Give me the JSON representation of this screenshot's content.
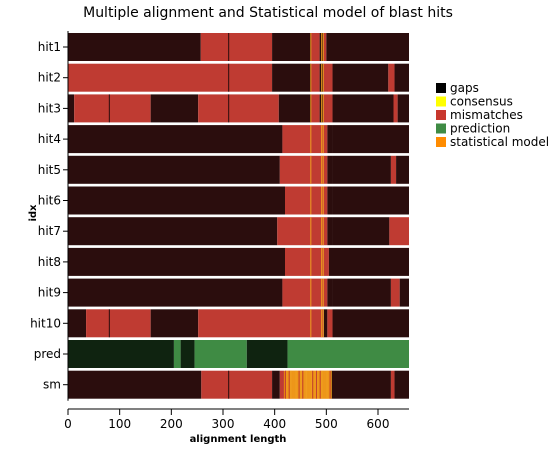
{
  "chart_data": {
    "type": "heatmap",
    "title": "Multiple alignment and Statistical model of blast hits",
    "xlabel": "alignment length",
    "ylabel": "idx",
    "xlim": [
      0,
      660
    ],
    "xticks": [
      0,
      100,
      200,
      300,
      400,
      500,
      600
    ],
    "rows": [
      "hit1",
      "hit2",
      "hit3",
      "hit4",
      "hit5",
      "hit6",
      "hit7",
      "hit8",
      "hit9",
      "hit10",
      "pred",
      "sm"
    ],
    "legend": {
      "position": "right",
      "items": [
        {
          "label": "gaps",
          "color": "#000000"
        },
        {
          "label": "consensus",
          "color": "#ffff00"
        },
        {
          "label": "mismatches",
          "color": "#c8372d"
        },
        {
          "label": "prediction",
          "color": "#3f8b44"
        },
        {
          "label": "statistical model",
          "color": "#ff8c00"
        }
      ]
    },
    "colors": {
      "gap": "#2b0d0d",
      "mismatch": "#bf3b32",
      "pred_dark": "#0f2310",
      "pred_green": "#3f8b44",
      "sm_orange": "#e8820e",
      "sm_line": "#f0a020"
    },
    "segments": {
      "hit1": [
        [
          0,
          257,
          "gap"
        ],
        [
          257,
          395,
          "mismatch"
        ],
        [
          395,
          470,
          "gap"
        ],
        [
          470,
          487,
          "mismatch"
        ],
        [
          487,
          494,
          "gap"
        ],
        [
          494,
          500,
          "mismatch"
        ],
        [
          500,
          660,
          "gap"
        ]
      ],
      "hit2": [
        [
          0,
          395,
          "mismatch"
        ],
        [
          395,
          470,
          "gap"
        ],
        [
          470,
          487,
          "mismatch"
        ],
        [
          487,
          494,
          "gap"
        ],
        [
          494,
          512,
          "mismatch"
        ],
        [
          512,
          620,
          "gap"
        ],
        [
          620,
          632,
          "mismatch"
        ],
        [
          632,
          660,
          "gap"
        ]
      ],
      "hit3": [
        [
          0,
          12,
          "gap"
        ],
        [
          12,
          160,
          "mismatch"
        ],
        [
          160,
          252,
          "gap"
        ],
        [
          252,
          408,
          "mismatch"
        ],
        [
          408,
          470,
          "gap"
        ],
        [
          470,
          487,
          "mismatch"
        ],
        [
          487,
          494,
          "gap"
        ],
        [
          494,
          512,
          "mismatch"
        ],
        [
          512,
          630,
          "gap"
        ],
        [
          630,
          638,
          "mismatch"
        ],
        [
          638,
          660,
          "gap"
        ]
      ],
      "hit4": [
        [
          0,
          415,
          "gap"
        ],
        [
          415,
          502,
          "mismatch"
        ],
        [
          502,
          512,
          "gap"
        ],
        [
          512,
          660,
          "gap"
        ]
      ],
      "hit5": [
        [
          0,
          410,
          "gap"
        ],
        [
          410,
          502,
          "mismatch"
        ],
        [
          502,
          512,
          "gap"
        ],
        [
          512,
          625,
          "gap"
        ],
        [
          625,
          635,
          "mismatch"
        ],
        [
          635,
          660,
          "gap"
        ]
      ],
      "hit6": [
        [
          0,
          420,
          "gap"
        ],
        [
          420,
          502,
          "mismatch"
        ],
        [
          502,
          512,
          "gap"
        ],
        [
          512,
          660,
          "gap"
        ]
      ],
      "hit7": [
        [
          0,
          405,
          "gap"
        ],
        [
          405,
          502,
          "mismatch"
        ],
        [
          502,
          512,
          "gap"
        ],
        [
          512,
          622,
          "gap"
        ],
        [
          622,
          660,
          "mismatch"
        ]
      ],
      "hit8": [
        [
          0,
          420,
          "gap"
        ],
        [
          420,
          505,
          "mismatch"
        ],
        [
          505,
          660,
          "gap"
        ]
      ],
      "hit9": [
        [
          0,
          415,
          "gap"
        ],
        [
          415,
          502,
          "mismatch"
        ],
        [
          502,
          512,
          "gap"
        ],
        [
          512,
          625,
          "gap"
        ],
        [
          625,
          642,
          "mismatch"
        ],
        [
          642,
          660,
          "gap"
        ]
      ],
      "hit10": [
        [
          0,
          35,
          "gap"
        ],
        [
          35,
          160,
          "mismatch"
        ],
        [
          160,
          252,
          "gap"
        ],
        [
          252,
          495,
          "mismatch"
        ],
        [
          495,
          502,
          "gap"
        ],
        [
          502,
          512,
          "mismatch"
        ],
        [
          512,
          660,
          "gap"
        ]
      ],
      "pred": [
        [
          0,
          205,
          "pred_dark"
        ],
        [
          205,
          218,
          "pred_green"
        ],
        [
          218,
          245,
          "pred_dark"
        ],
        [
          245,
          346,
          "pred_green"
        ],
        [
          346,
          425,
          "pred_dark"
        ],
        [
          425,
          660,
          "pred_green"
        ]
      ],
      "sm": [
        [
          0,
          258,
          "gap"
        ],
        [
          258,
          395,
          "mismatch"
        ],
        [
          395,
          410,
          "gap"
        ],
        [
          410,
          418,
          "mismatch"
        ],
        [
          418,
          510,
          "sm_orange"
        ],
        [
          510,
          625,
          "gap"
        ],
        [
          625,
          632,
          "mismatch"
        ],
        [
          632,
          660,
          "gap"
        ]
      ]
    },
    "thin_lines": {
      "hit1": [
        {
          "x": 311,
          "color": "gap"
        },
        {
          "x": 470,
          "color": "sm_line"
        },
        {
          "x": 491,
          "color": "sm_line"
        },
        {
          "x": 494,
          "color": "sm_line"
        }
      ],
      "hit2": [
        {
          "x": 311,
          "color": "gap"
        },
        {
          "x": 470,
          "color": "sm_line"
        },
        {
          "x": 491,
          "color": "sm_line"
        },
        {
          "x": 494,
          "color": "sm_line"
        }
      ],
      "hit3": [
        {
          "x": 80,
          "color": "gap"
        },
        {
          "x": 311,
          "color": "gap"
        },
        {
          "x": 470,
          "color": "sm_line"
        },
        {
          "x": 491,
          "color": "sm_line"
        },
        {
          "x": 494,
          "color": "sm_line"
        }
      ],
      "hit4": [
        {
          "x": 470,
          "color": "sm_line"
        },
        {
          "x": 491,
          "color": "sm_line"
        },
        {
          "x": 494,
          "color": "sm_line"
        }
      ],
      "hit5": [
        {
          "x": 470,
          "color": "sm_line"
        },
        {
          "x": 491,
          "color": "sm_line"
        },
        {
          "x": 494,
          "color": "sm_line"
        }
      ],
      "hit6": [
        {
          "x": 470,
          "color": "sm_line"
        },
        {
          "x": 491,
          "color": "sm_line"
        },
        {
          "x": 494,
          "color": "sm_line"
        }
      ],
      "hit7": [
        {
          "x": 470,
          "color": "sm_line"
        },
        {
          "x": 491,
          "color": "sm_line"
        },
        {
          "x": 494,
          "color": "sm_line"
        }
      ],
      "hit8": [
        {
          "x": 470,
          "color": "sm_line"
        },
        {
          "x": 491,
          "color": "sm_line"
        },
        {
          "x": 494,
          "color": "sm_line"
        }
      ],
      "hit9": [
        {
          "x": 470,
          "color": "sm_line"
        },
        {
          "x": 491,
          "color": "sm_line"
        },
        {
          "x": 494,
          "color": "sm_line"
        }
      ],
      "hit10": [
        {
          "x": 80,
          "color": "gap"
        },
        {
          "x": 470,
          "color": "sm_line"
        },
        {
          "x": 491,
          "color": "sm_line"
        },
        {
          "x": 494,
          "color": "sm_line"
        }
      ],
      "sm": [
        {
          "x": 311,
          "color": "gap"
        }
      ]
    }
  }
}
